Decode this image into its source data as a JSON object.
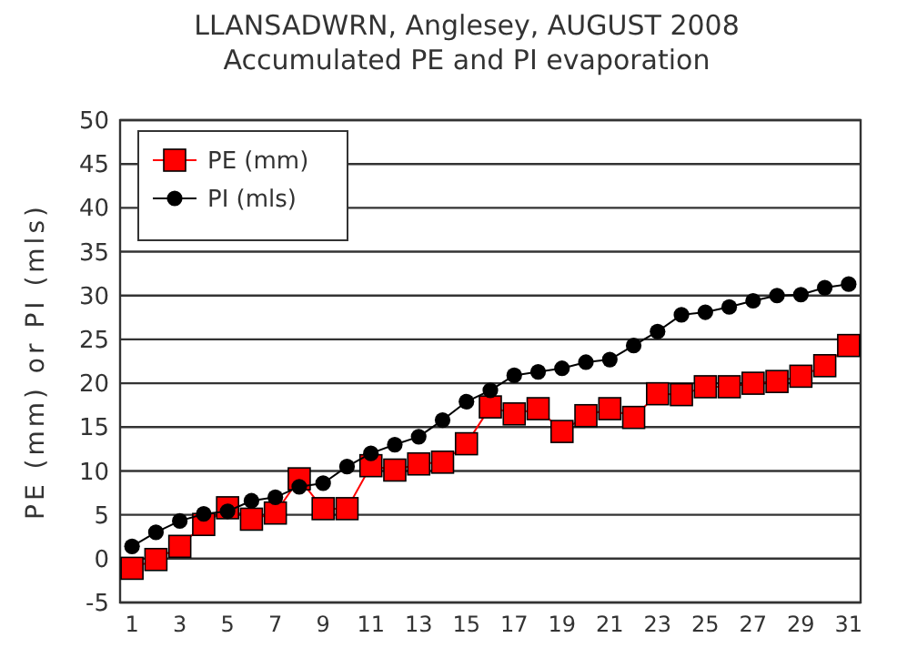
{
  "chart_data": {
    "type": "line",
    "title": "LLANSADWRN, Anglesey, AUGUST 2008",
    "subtitle": "Accumulated PE and PI evaporation",
    "ylabel": "PE (mm) or PI (mls)",
    "x": [
      1,
      2,
      3,
      4,
      5,
      6,
      7,
      8,
      9,
      10,
      11,
      12,
      13,
      14,
      15,
      16,
      17,
      18,
      19,
      20,
      21,
      22,
      23,
      24,
      25,
      26,
      27,
      28,
      29,
      30,
      31
    ],
    "xlim": [
      0.5,
      31.5
    ],
    "xticks": [
      1,
      3,
      5,
      7,
      9,
      11,
      13,
      15,
      17,
      19,
      21,
      23,
      25,
      27,
      29,
      31
    ],
    "ylim": [
      -5,
      50
    ],
    "yticks": [
      -5,
      0,
      5,
      10,
      15,
      20,
      25,
      30,
      35,
      40,
      45,
      50
    ],
    "grid": "y",
    "legend": "top left",
    "series": [
      {
        "name": "PE (mm)",
        "color": "#ff0000",
        "marker": "square",
        "values": [
          -1.1,
          -0.1,
          1.4,
          3.9,
          5.8,
          4.5,
          5.2,
          9.1,
          5.7,
          5.7,
          10.6,
          10.1,
          10.8,
          11,
          13.1,
          17.3,
          16.5,
          17.1,
          14.5,
          16.3,
          17.1,
          16.1,
          18.8,
          18.7,
          19.6,
          19.6,
          20,
          20.2,
          20.8,
          22,
          24.3
        ]
      },
      {
        "name": "PI (mls)",
        "color": "#000000",
        "marker": "circle",
        "values": [
          1.4,
          3,
          4.3,
          5.1,
          5.4,
          6.6,
          7,
          8.2,
          8.6,
          10.5,
          12,
          13,
          13.9,
          15.8,
          17.9,
          19.2,
          20.9,
          21.3,
          21.7,
          22.4,
          22.7,
          24.3,
          25.9,
          27.8,
          28.1,
          28.7,
          29.4,
          30,
          30.1,
          30.9,
          31.3
        ]
      }
    ]
  }
}
